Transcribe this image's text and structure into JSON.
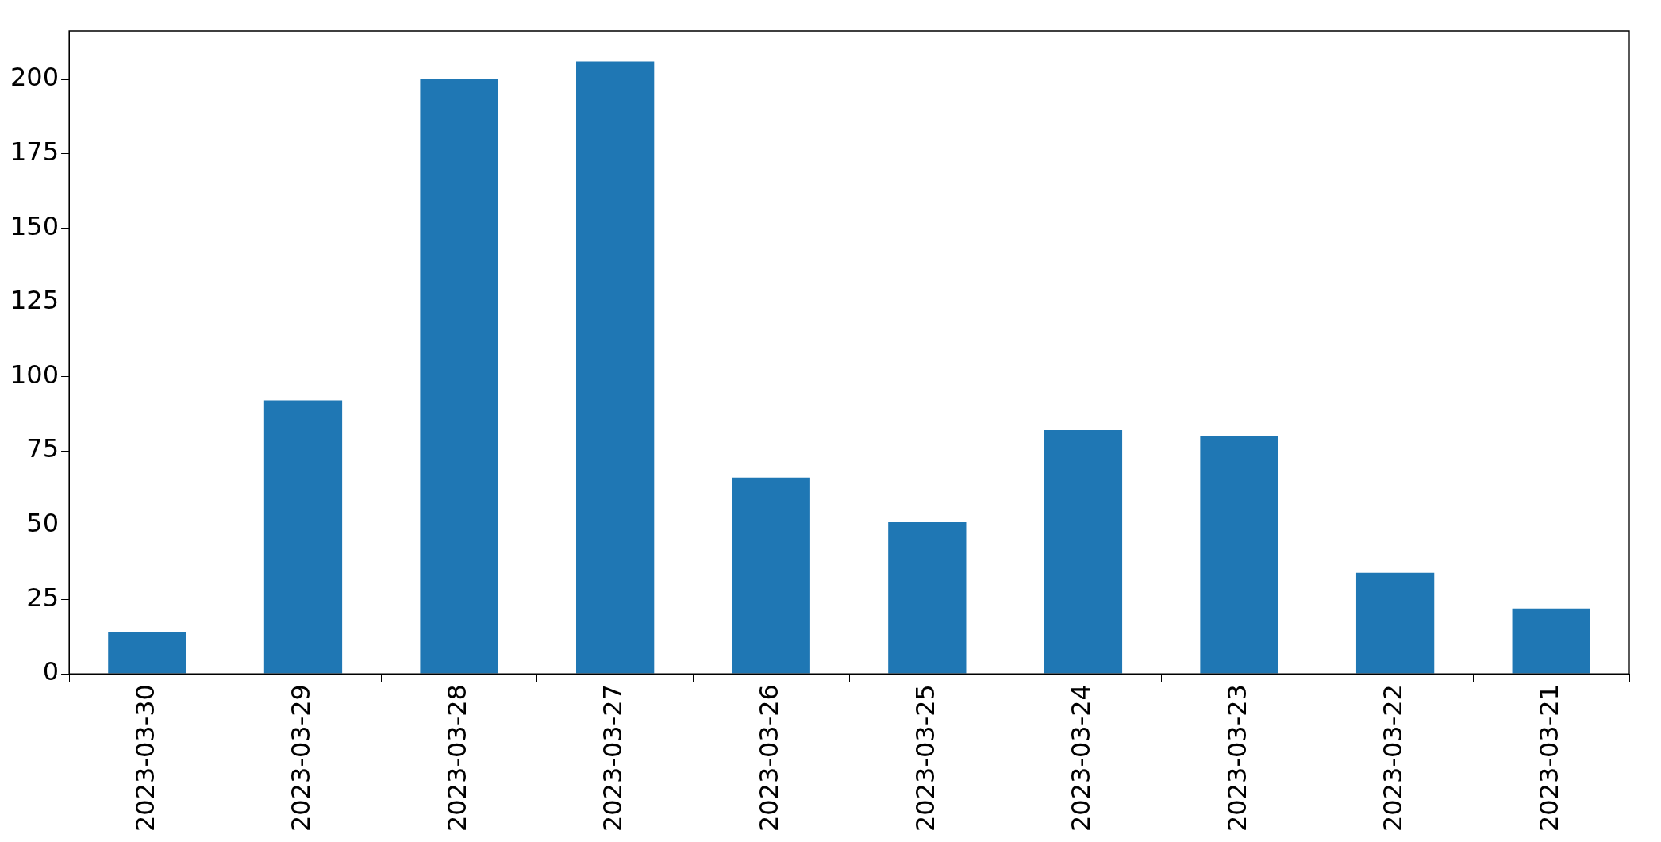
{
  "chart_data": {
    "type": "bar",
    "categories": [
      "2023-03-30",
      "2023-03-29",
      "2023-03-28",
      "2023-03-27",
      "2023-03-26",
      "2023-03-25",
      "2023-03-24",
      "2023-03-23",
      "2023-03-22",
      "2023-03-21"
    ],
    "values": [
      14,
      92,
      200,
      206,
      66,
      51,
      82,
      80,
      34,
      22
    ],
    "color": "#1f77b4",
    "ylim": [
      0,
      216.3
    ],
    "yticks": [
      0,
      25,
      50,
      75,
      100,
      125,
      150,
      175,
      200
    ],
    "grid": false,
    "legend": false
  }
}
